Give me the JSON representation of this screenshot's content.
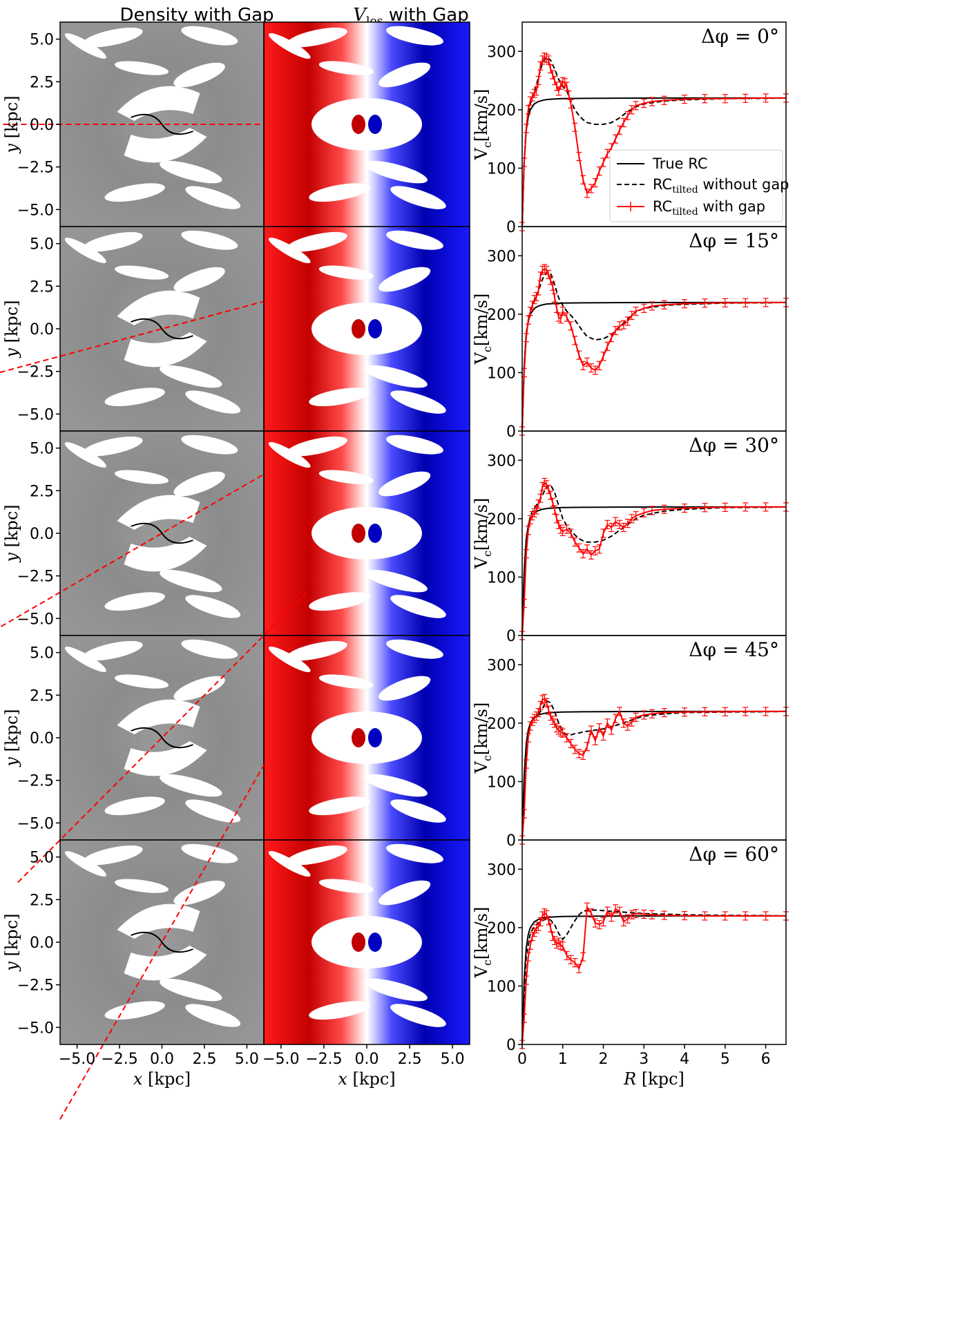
{
  "column_titles": {
    "density": "Density with Gap",
    "vlos_main": "V",
    "vlos_sub": "los",
    "vlos_suffix": " with Gap"
  },
  "colors": {
    "true_rc": "#000000",
    "no_gap": "#000000",
    "with_gap": "#ff0000",
    "density_bg": "#8e8e8e",
    "slit": "#ff0000",
    "vlos_red": "#ff0000",
    "vlos_darkred": "#a50000",
    "vlos_blue": "#0000ff",
    "vlos_darkblue": "#000070"
  },
  "maps": {
    "xlabel_main": "x",
    "xlabel_unit": "[kpc]",
    "ylabel_main": "y",
    "ylabel_unit": "[kpc]",
    "xlim": [
      -6,
      6
    ],
    "ylim": [
      -6,
      6
    ],
    "xticks": [
      -5.0,
      -2.5,
      0.0,
      2.5,
      5.0
    ],
    "yticks": [
      5.0,
      2.5,
      0.0,
      -2.5,
      -5.0
    ],
    "xtick_labels": [
      "−5.0",
      "−2.5",
      "0.0",
      "2.5",
      "5.0"
    ],
    "ytick_labels": [
      "5.0",
      "2.5",
      "0.0",
      "−2.5",
      "−5.0"
    ]
  },
  "chart_data": {
    "type": "line",
    "xlabel_main": "R",
    "xlabel_unit": "[kpc]",
    "ylabel_main": "V",
    "ylabel_sub": "c",
    "ylabel_unit": "[km/s]",
    "xlim": [
      0,
      6.5
    ],
    "ylim": [
      0,
      350
    ],
    "xticks": [
      0,
      1,
      2,
      3,
      4,
      5,
      6
    ],
    "yticks": [
      0,
      100,
      200,
      300
    ],
    "legend": {
      "placement": "center-right",
      "true_rc": "True RC",
      "no_gap_main": "RC",
      "no_gap_sub": "tilted",
      "no_gap_suffix": " without gap",
      "gap_main": "RC",
      "gap_sub": "tilted",
      "gap_suffix": " with gap"
    },
    "true_rc": {
      "x": [
        0,
        0.05,
        0.1,
        0.15,
        0.2,
        0.3,
        0.4,
        0.5,
        0.6,
        0.8,
        1.0,
        1.5,
        2.0,
        3.0,
        4.0,
        5.0,
        6.0,
        6.5
      ],
      "y": [
        0,
        110,
        165,
        188,
        200,
        210,
        214,
        216,
        217.5,
        218.5,
        219,
        219.5,
        219.7,
        219.9,
        220,
        220,
        220,
        220
      ]
    },
    "panels": [
      {
        "label": "Δφ = 0°",
        "slit_angle_deg": 0,
        "no_gap": {
          "x": [
            0,
            0.05,
            0.1,
            0.2,
            0.3,
            0.4,
            0.5,
            0.6,
            0.7,
            0.8,
            0.9,
            1.0,
            1.1,
            1.2,
            1.3,
            1.4,
            1.5,
            1.6,
            1.8,
            2.0,
            2.2,
            2.4,
            2.6,
            2.8,
            3.0,
            3.5,
            4.0,
            5.0,
            6.0,
            6.5
          ],
          "y": [
            0,
            110,
            170,
            210,
            230,
            255,
            280,
            290,
            285,
            270,
            252,
            240,
            232,
            215,
            200,
            190,
            183,
            178,
            175,
            175,
            178,
            186,
            197,
            205,
            210,
            215,
            217,
            219,
            219.5,
            220
          ]
        },
        "with_gap": {
          "x": [
            0,
            0.05,
            0.1,
            0.15,
            0.2,
            0.25,
            0.3,
            0.35,
            0.4,
            0.45,
            0.5,
            0.55,
            0.6,
            0.65,
            0.7,
            0.75,
            0.8,
            0.85,
            0.9,
            0.95,
            1.0,
            1.05,
            1.1,
            1.15,
            1.2,
            1.3,
            1.4,
            1.5,
            1.6,
            1.7,
            1.8,
            1.9,
            2.0,
            2.1,
            2.2,
            2.3,
            2.4,
            2.5,
            2.6,
            2.7,
            2.8,
            3.0,
            3.2,
            3.5,
            4.0,
            4.5,
            5.0,
            5.5,
            6.0,
            6.5
          ],
          "y": [
            0,
            110,
            168,
            200,
            215,
            222,
            228,
            232,
            250,
            275,
            285,
            290,
            288,
            285,
            270,
            260,
            250,
            240,
            232,
            242,
            248,
            246,
            240,
            225,
            210,
            170,
            120,
            80,
            57,
            65,
            75,
            95,
            110,
            125,
            135,
            150,
            165,
            178,
            190,
            200,
            207,
            211,
            214,
            216,
            218,
            219,
            219,
            219.5,
            220,
            220
          ]
        }
      },
      {
        "label": "Δφ = 15°",
        "slit_angle_deg": 15,
        "no_gap": {
          "x": [
            0,
            0.05,
            0.1,
            0.2,
            0.3,
            0.4,
            0.5,
            0.6,
            0.7,
            0.8,
            0.9,
            1.0,
            1.1,
            1.2,
            1.3,
            1.4,
            1.5,
            1.6,
            1.8,
            2.0,
            2.2,
            2.4,
            2.6,
            2.8,
            3.0,
            3.5,
            4.0,
            5.0,
            6.0,
            6.5
          ],
          "y": [
            0,
            110,
            168,
            205,
            222,
            240,
            260,
            272,
            270,
            250,
            228,
            215,
            205,
            198,
            190,
            180,
            170,
            162,
            156,
            158,
            165,
            178,
            192,
            204,
            210,
            215,
            217,
            219,
            219.5,
            220
          ]
        },
        "with_gap": {
          "x": [
            0,
            0.05,
            0.1,
            0.15,
            0.2,
            0.25,
            0.3,
            0.35,
            0.4,
            0.45,
            0.5,
            0.55,
            0.6,
            0.65,
            0.7,
            0.75,
            0.8,
            0.85,
            0.9,
            0.95,
            1.0,
            1.1,
            1.2,
            1.3,
            1.4,
            1.5,
            1.6,
            1.7,
            1.8,
            1.9,
            2.0,
            2.1,
            2.2,
            2.3,
            2.4,
            2.5,
            2.6,
            2.7,
            2.8,
            3.0,
            3.2,
            3.5,
            4.0,
            4.5,
            5.0,
            5.5,
            6.0,
            6.5
          ],
          "y": [
            0,
            100,
            160,
            190,
            205,
            215,
            225,
            230,
            240,
            265,
            275,
            278,
            275,
            268,
            258,
            248,
            228,
            210,
            195,
            192,
            205,
            195,
            180,
            155,
            130,
            112,
            118,
            108,
            104,
            112,
            128,
            145,
            160,
            172,
            180,
            182,
            188,
            198,
            205,
            210,
            214,
            216,
            218,
            219,
            219.5,
            219.5,
            220,
            220
          ]
        }
      },
      {
        "label": "Δφ = 30°",
        "slit_angle_deg": 30,
        "no_gap": {
          "x": [
            0,
            0.05,
            0.1,
            0.2,
            0.3,
            0.4,
            0.5,
            0.6,
            0.7,
            0.8,
            0.9,
            1.0,
            1.1,
            1.2,
            1.3,
            1.4,
            1.5,
            1.6,
            1.8,
            2.0,
            2.2,
            2.4,
            2.6,
            2.8,
            3.0,
            3.5,
            4.0,
            5.0,
            6.0,
            6.5
          ],
          "y": [
            0,
            105,
            165,
            205,
            218,
            228,
            240,
            255,
            258,
            245,
            222,
            200,
            188,
            180,
            172,
            166,
            162,
            160,
            160,
            163,
            170,
            180,
            190,
            200,
            206,
            213,
            216,
            219,
            219.5,
            220
          ]
        },
        "with_gap": {
          "x": [
            0,
            0.05,
            0.1,
            0.15,
            0.2,
            0.25,
            0.3,
            0.35,
            0.4,
            0.45,
            0.5,
            0.55,
            0.6,
            0.65,
            0.7,
            0.75,
            0.8,
            0.85,
            0.9,
            0.95,
            1.0,
            1.1,
            1.2,
            1.3,
            1.4,
            1.5,
            1.6,
            1.7,
            1.8,
            1.9,
            2.0,
            2.1,
            2.2,
            2.3,
            2.4,
            2.5,
            2.6,
            2.7,
            2.8,
            3.0,
            3.2,
            3.5,
            4.0,
            4.5,
            5.0,
            5.5,
            6.0,
            6.5
          ],
          "y": [
            0,
            55,
            140,
            180,
            198,
            205,
            210,
            215,
            225,
            235,
            255,
            262,
            258,
            250,
            240,
            228,
            215,
            200,
            190,
            182,
            178,
            182,
            175,
            160,
            150,
            140,
            148,
            138,
            145,
            148,
            175,
            190,
            185,
            195,
            190,
            185,
            192,
            200,
            205,
            210,
            214,
            216,
            218,
            219,
            219.5,
            220,
            220,
            220
          ]
        }
      },
      {
        "label": "Δφ = 45°",
        "slit_angle_deg": 45,
        "no_gap": {
          "x": [
            0,
            0.05,
            0.1,
            0.2,
            0.3,
            0.4,
            0.5,
            0.6,
            0.7,
            0.8,
            0.9,
            1.0,
            1.1,
            1.2,
            1.3,
            1.4,
            1.5,
            1.6,
            1.8,
            2.0,
            2.2,
            2.4,
            2.6,
            2.8,
            3.0,
            3.5,
            4.0,
            5.0,
            6.0,
            6.5
          ],
          "y": [
            0,
            100,
            160,
            200,
            210,
            215,
            225,
            238,
            235,
            220,
            200,
            185,
            180,
            180,
            182,
            183,
            185,
            186,
            188,
            190,
            194,
            198,
            203,
            208,
            212,
            216,
            218,
            219,
            219.5,
            220
          ]
        },
        "with_gap": {
          "x": [
            0,
            0.05,
            0.1,
            0.15,
            0.2,
            0.25,
            0.3,
            0.35,
            0.4,
            0.45,
            0.5,
            0.55,
            0.6,
            0.65,
            0.7,
            0.75,
            0.8,
            0.85,
            0.9,
            0.95,
            1.0,
            1.1,
            1.2,
            1.3,
            1.4,
            1.5,
            1.6,
            1.7,
            1.8,
            1.9,
            2.0,
            2.1,
            2.2,
            2.3,
            2.4,
            2.5,
            2.6,
            2.7,
            2.8,
            3.0,
            3.2,
            3.5,
            4.0,
            4.5,
            5.0,
            5.5,
            6.0,
            6.5
          ],
          "y": [
            0,
            45,
            130,
            175,
            195,
            203,
            208,
            212,
            218,
            230,
            240,
            242,
            235,
            222,
            212,
            205,
            200,
            192,
            188,
            185,
            183,
            175,
            165,
            155,
            148,
            145,
            160,
            188,
            170,
            192,
            178,
            200,
            188,
            208,
            220,
            200,
            195,
            202,
            210,
            214,
            216,
            218,
            219,
            219.5,
            219.5,
            220,
            220,
            220
          ]
        }
      },
      {
        "label": "Δφ = 60°",
        "slit_angle_deg": 60,
        "no_gap": {
          "x": [
            0,
            0.05,
            0.1,
            0.2,
            0.3,
            0.4,
            0.5,
            0.6,
            0.7,
            0.8,
            0.9,
            1.0,
            1.1,
            1.2,
            1.3,
            1.4,
            1.5,
            1.6,
            1.8,
            2.0,
            2.2,
            2.4,
            2.6,
            2.8,
            3.0,
            3.5,
            4.0,
            5.0,
            6.0,
            6.5
          ],
          "y": [
            0,
            90,
            150,
            190,
            202,
            208,
            212,
            215,
            213,
            205,
            190,
            180,
            188,
            200,
            212,
            222,
            228,
            230,
            230,
            229,
            228,
            227,
            226,
            225,
            224,
            223,
            222,
            221,
            220.5,
            220
          ]
        },
        "with_gap": {
          "x": [
            0,
            0.05,
            0.1,
            0.15,
            0.2,
            0.25,
            0.3,
            0.35,
            0.4,
            0.45,
            0.5,
            0.55,
            0.6,
            0.65,
            0.7,
            0.75,
            0.8,
            0.85,
            0.9,
            0.95,
            1.0,
            1.1,
            1.2,
            1.3,
            1.4,
            1.5,
            1.6,
            1.7,
            1.8,
            1.9,
            2.0,
            2.1,
            2.2,
            2.3,
            2.4,
            2.5,
            2.6,
            2.7,
            2.8,
            3.0,
            3.2,
            3.5,
            4.0,
            4.5,
            5.0,
            5.5,
            6.0,
            6.5
          ],
          "y": [
            0,
            45,
            110,
            150,
            170,
            185,
            192,
            198,
            202,
            210,
            220,
            225,
            222,
            212,
            200,
            185,
            178,
            172,
            175,
            170,
            168,
            152,
            145,
            140,
            130,
            150,
            235,
            225,
            208,
            205,
            210,
            228,
            218,
            232,
            228,
            210,
            215,
            222,
            224,
            223,
            222,
            221,
            220.5,
            220,
            220,
            220,
            220,
            220
          ]
        }
      }
    ]
  }
}
